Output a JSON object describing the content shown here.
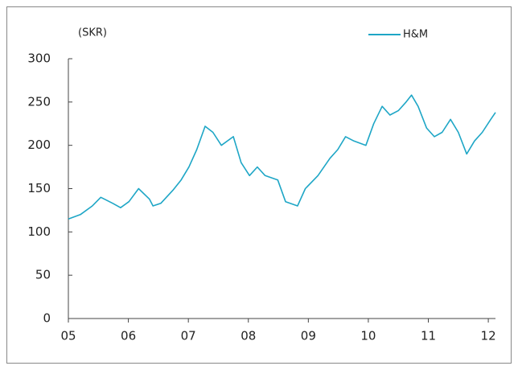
{
  "chart_data": {
    "type": "line",
    "y_axis_label": "(SKR)",
    "x": [
      2005.0,
      2005.2,
      2005.4,
      2005.54,
      2005.74,
      2005.87,
      2006.01,
      2006.17,
      2006.35,
      2006.41,
      2006.54,
      2006.74,
      2006.88,
      2007.01,
      2007.14,
      2007.28,
      2007.41,
      2007.55,
      2007.75,
      2007.88,
      2008.02,
      2008.15,
      2008.28,
      2008.49,
      2008.62,
      2008.82,
      2008.95,
      2009.16,
      2009.36,
      2009.49,
      2009.62,
      2009.76,
      2009.96,
      2010.09,
      2010.23,
      2010.36,
      2010.5,
      2010.63,
      2010.72,
      2010.83,
      2010.97,
      2011.1,
      2011.23,
      2011.37,
      2011.5,
      2011.64,
      2011.77,
      2011.9,
      2012.04,
      2012.12
    ],
    "series": [
      {
        "name": "H&M",
        "color": "#1ea6c6",
        "values": [
          115,
          120,
          130,
          140,
          133,
          128,
          135,
          150,
          138,
          130,
          133,
          148,
          160,
          175,
          195,
          222,
          215,
          200,
          210,
          180,
          165,
          175,
          165,
          160,
          135,
          130,
          150,
          165,
          185,
          195,
          210,
          205,
          200,
          225,
          245,
          235,
          240,
          250,
          258,
          245,
          220,
          210,
          215,
          230,
          215,
          190,
          205,
          215,
          230,
          238
        ]
      }
    ],
    "xlim": [
      2005,
      2012.2
    ],
    "xticks": [
      {
        "value": 2005,
        "label": "05"
      },
      {
        "value": 2006,
        "label": "06"
      },
      {
        "value": 2007,
        "label": "07"
      },
      {
        "value": 2008,
        "label": "08"
      },
      {
        "value": 2009,
        "label": "09"
      },
      {
        "value": 2010,
        "label": "10"
      },
      {
        "value": 2011,
        "label": "11"
      },
      {
        "value": 2012,
        "label": "12"
      }
    ],
    "ylim": [
      0,
      300
    ],
    "yticks": [
      0,
      50,
      100,
      150,
      200,
      250,
      300
    ],
    "legend": "top-right",
    "grid": false
  }
}
